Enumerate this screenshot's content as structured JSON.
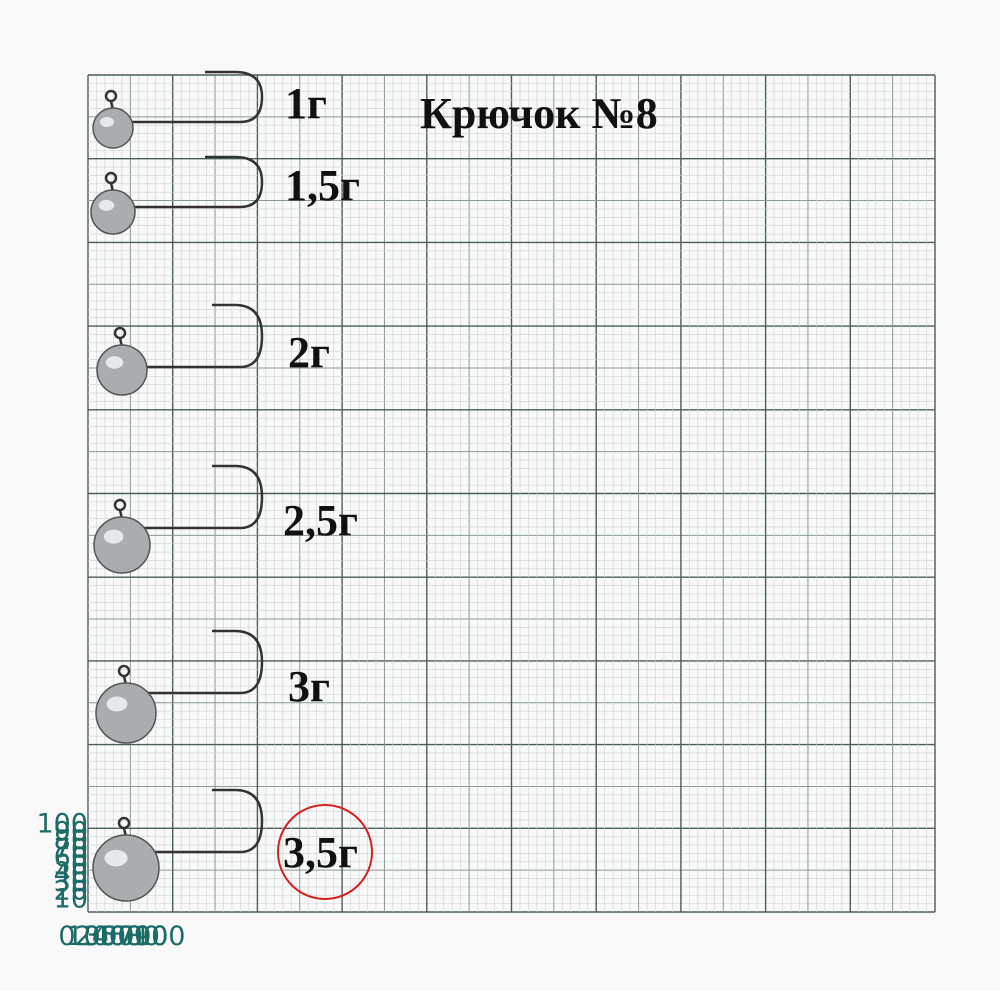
{
  "title": "Крючок №8",
  "x_labels": [
    "0",
    "10",
    "20",
    "30",
    "40",
    "50",
    "60",
    "70",
    "80",
    "90",
    "100"
  ],
  "y_labels": [
    "10",
    "20",
    "30",
    "40",
    "50",
    "60",
    "70",
    "80",
    "90",
    "100"
  ],
  "jigs": [
    {
      "label": "1г"
    },
    {
      "label": "1,5г"
    },
    {
      "label": "2г"
    },
    {
      "label": "2,5г"
    },
    {
      "label": "3г"
    },
    {
      "label": "3,5г"
    }
  ]
}
